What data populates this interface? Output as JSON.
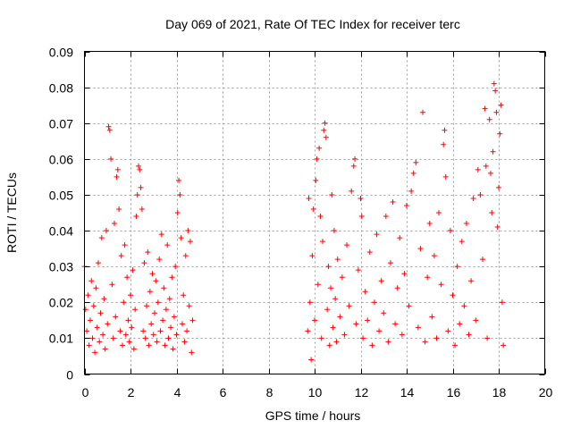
{
  "chart_data": {
    "type": "scatter",
    "title": "Day 069 of 2021, Rate Of TEC Index for receiver terc",
    "xlabel": "GPS time / hours",
    "ylabel": "ROTI / TECUs",
    "xlim": [
      0,
      20
    ],
    "ylim": [
      0,
      0.09
    ],
    "xticks": [
      0,
      2,
      4,
      6,
      8,
      10,
      12,
      14,
      16,
      18,
      20
    ],
    "xtick_labels": [
      "0",
      "2",
      "4",
      "6",
      "8",
      "10",
      "12",
      "14",
      "16",
      "18",
      "20"
    ],
    "yticks": [
      0,
      0.01,
      0.02,
      0.03,
      0.04,
      0.05,
      0.06,
      0.07,
      0.08,
      0.09
    ],
    "ytick_labels": [
      "0",
      "0.01",
      "0.02",
      "0.03",
      "0.04",
      "0.05",
      "0.06",
      "0.07",
      "0.08",
      "0.09"
    ],
    "grid": true,
    "marker": "+",
    "color": "#ff0000",
    "series": [
      {
        "name": "ROTI",
        "points": [
          [
            0.0,
            0.03
          ],
          [
            0.05,
            0.018
          ],
          [
            0.1,
            0.012
          ],
          [
            0.15,
            0.022
          ],
          [
            0.2,
            0.008
          ],
          [
            0.25,
            0.015
          ],
          [
            0.3,
            0.026
          ],
          [
            0.35,
            0.01
          ],
          [
            0.4,
            0.019
          ],
          [
            0.45,
            0.006
          ],
          [
            0.5,
            0.024
          ],
          [
            0.55,
            0.013
          ],
          [
            0.6,
            0.031
          ],
          [
            0.65,
            0.009
          ],
          [
            0.7,
            0.017
          ],
          [
            0.75,
            0.038
          ],
          [
            0.8,
            0.011
          ],
          [
            0.85,
            0.021
          ],
          [
            0.9,
            0.007
          ],
          [
            0.95,
            0.04
          ],
          [
            1.0,
            0.014
          ],
          [
            1.05,
            0.069
          ],
          [
            1.1,
            0.068
          ],
          [
            1.15,
            0.06
          ],
          [
            1.2,
            0.025
          ],
          [
            1.25,
            0.01
          ],
          [
            1.3,
            0.042
          ],
          [
            1.35,
            0.016
          ],
          [
            1.4,
            0.055
          ],
          [
            1.45,
            0.057
          ],
          [
            1.5,
            0.046
          ],
          [
            1.55,
            0.012
          ],
          [
            1.6,
            0.033
          ],
          [
            1.65,
            0.008
          ],
          [
            1.7,
            0.02
          ],
          [
            1.75,
            0.036
          ],
          [
            1.8,
            0.011
          ],
          [
            1.85,
            0.027
          ],
          [
            1.9,
            0.015
          ],
          [
            1.95,
            0.009
          ],
          [
            2.0,
            0.022
          ],
          [
            2.05,
            0.013
          ],
          [
            2.1,
            0.029
          ],
          [
            2.15,
            0.007
          ],
          [
            2.2,
            0.018
          ],
          [
            2.25,
            0.044
          ],
          [
            2.3,
            0.05
          ],
          [
            2.35,
            0.058
          ],
          [
            2.4,
            0.057
          ],
          [
            2.45,
            0.052
          ],
          [
            2.5,
            0.046
          ],
          [
            2.55,
            0.012
          ],
          [
            2.6,
            0.031
          ],
          [
            2.65,
            0.01
          ],
          [
            2.7,
            0.019
          ],
          [
            2.75,
            0.034
          ],
          [
            2.8,
            0.008
          ],
          [
            2.85,
            0.023
          ],
          [
            2.9,
            0.014
          ],
          [
            2.95,
            0.028
          ],
          [
            3.0,
            0.011
          ],
          [
            3.05,
            0.017
          ],
          [
            3.1,
            0.026
          ],
          [
            3.15,
            0.009
          ],
          [
            3.2,
            0.02
          ],
          [
            3.25,
            0.032
          ],
          [
            3.3,
            0.012
          ],
          [
            3.35,
            0.039
          ],
          [
            3.4,
            0.015
          ],
          [
            3.45,
            0.024
          ],
          [
            3.5,
            0.008
          ],
          [
            3.55,
            0.018
          ],
          [
            3.6,
            0.036
          ],
          [
            3.65,
            0.01
          ],
          [
            3.7,
            0.021
          ],
          [
            3.75,
            0.013
          ],
          [
            3.8,
            0.027
          ],
          [
            3.85,
            0.007
          ],
          [
            3.9,
            0.016
          ],
          [
            3.95,
            0.03
          ],
          [
            4.0,
            0.011
          ],
          [
            4.05,
            0.045
          ],
          [
            4.1,
            0.054
          ],
          [
            4.15,
            0.05
          ],
          [
            4.2,
            0.038
          ],
          [
            4.25,
            0.014
          ],
          [
            4.3,
            0.022
          ],
          [
            4.35,
            0.009
          ],
          [
            4.4,
            0.033
          ],
          [
            4.45,
            0.012
          ],
          [
            4.5,
            0.04
          ],
          [
            4.55,
            0.019
          ],
          [
            4.6,
            0.037
          ],
          [
            4.65,
            0.006
          ],
          [
            4.7,
            0.015
          ],
          [
            9.7,
            0.012
          ],
          [
            9.75,
            0.049
          ],
          [
            9.8,
            0.02
          ],
          [
            9.85,
            0.004
          ],
          [
            9.9,
            0.033
          ],
          [
            9.95,
            0.046
          ],
          [
            10.0,
            0.015
          ],
          [
            10.05,
            0.054
          ],
          [
            10.1,
            0.06
          ],
          [
            10.15,
            0.025
          ],
          [
            10.2,
            0.063
          ],
          [
            10.25,
            0.044
          ],
          [
            10.3,
            0.01
          ],
          [
            10.35,
            0.037
          ],
          [
            10.4,
            0.068
          ],
          [
            10.45,
            0.07
          ],
          [
            10.5,
            0.066
          ],
          [
            10.55,
            0.018
          ],
          [
            10.6,
            0.03
          ],
          [
            10.65,
            0.008
          ],
          [
            10.7,
            0.024
          ],
          [
            10.75,
            0.05
          ],
          [
            10.8,
            0.013
          ],
          [
            10.85,
            0.04
          ],
          [
            10.9,
            0.021
          ],
          [
            10.95,
            0.009
          ],
          [
            11.0,
            0.032
          ],
          [
            11.1,
            0.016
          ],
          [
            11.2,
            0.027
          ],
          [
            11.3,
            0.011
          ],
          [
            11.4,
            0.036
          ],
          [
            11.5,
            0.019
          ],
          [
            11.6,
            0.051
          ],
          [
            11.7,
            0.058
          ],
          [
            11.75,
            0.06
          ],
          [
            11.8,
            0.014
          ],
          [
            11.9,
            0.029
          ],
          [
            12.0,
            0.049
          ],
          [
            12.05,
            0.044
          ],
          [
            12.1,
            0.01
          ],
          [
            12.2,
            0.023
          ],
          [
            12.3,
            0.015
          ],
          [
            12.4,
            0.034
          ],
          [
            12.5,
            0.008
          ],
          [
            12.6,
            0.02
          ],
          [
            12.7,
            0.039
          ],
          [
            12.8,
            0.012
          ],
          [
            12.9,
            0.026
          ],
          [
            13.0,
            0.017
          ],
          [
            13.1,
            0.044
          ],
          [
            13.2,
            0.009
          ],
          [
            13.3,
            0.031
          ],
          [
            13.4,
            0.048
          ],
          [
            13.5,
            0.014
          ],
          [
            13.6,
            0.024
          ],
          [
            13.7,
            0.038
          ],
          [
            13.8,
            0.011
          ],
          [
            13.9,
            0.028
          ],
          [
            14.0,
            0.047
          ],
          [
            14.1,
            0.019
          ],
          [
            14.2,
            0.051
          ],
          [
            14.3,
            0.056
          ],
          [
            14.4,
            0.059
          ],
          [
            14.5,
            0.013
          ],
          [
            14.6,
            0.035
          ],
          [
            14.7,
            0.073
          ],
          [
            14.8,
            0.009
          ],
          [
            14.9,
            0.027
          ],
          [
            15.0,
            0.042
          ],
          [
            15.1,
            0.016
          ],
          [
            15.2,
            0.033
          ],
          [
            15.3,
            0.01
          ],
          [
            15.4,
            0.045
          ],
          [
            15.5,
            0.025
          ],
          [
            15.6,
            0.064
          ],
          [
            15.65,
            0.068
          ],
          [
            15.7,
            0.055
          ],
          [
            15.8,
            0.012
          ],
          [
            15.9,
            0.04
          ],
          [
            16.0,
            0.022
          ],
          [
            16.1,
            0.008
          ],
          [
            16.2,
            0.03
          ],
          [
            16.3,
            0.014
          ],
          [
            16.4,
            0.037
          ],
          [
            16.5,
            0.019
          ],
          [
            16.6,
            0.042
          ],
          [
            16.7,
            0.011
          ],
          [
            16.8,
            0.026
          ],
          [
            16.9,
            0.049
          ],
          [
            17.0,
            0.015
          ],
          [
            17.1,
            0.057
          ],
          [
            17.2,
            0.05
          ],
          [
            17.3,
            0.032
          ],
          [
            17.4,
            0.074
          ],
          [
            17.45,
            0.058
          ],
          [
            17.5,
            0.01
          ],
          [
            17.6,
            0.071
          ],
          [
            17.65,
            0.056
          ],
          [
            17.7,
            0.045
          ],
          [
            17.75,
            0.062
          ],
          [
            17.8,
            0.081
          ],
          [
            17.85,
            0.079
          ],
          [
            17.9,
            0.073
          ],
          [
            17.95,
            0.041
          ],
          [
            18.0,
            0.052
          ],
          [
            18.05,
            0.067
          ],
          [
            18.1,
            0.075
          ],
          [
            18.15,
            0.02
          ],
          [
            18.2,
            0.008
          ]
        ]
      }
    ]
  }
}
